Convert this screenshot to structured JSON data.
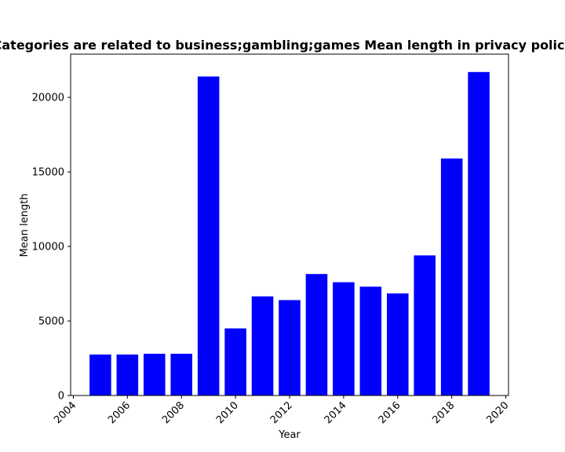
{
  "chart_data": {
    "type": "bar",
    "title": "Categories are related to business;gambling;games Mean length in privacy policies",
    "xlabel": "Year",
    "ylabel": "Mean length",
    "x": [
      2005,
      2006,
      2007,
      2008,
      2009,
      2010,
      2011,
      2012,
      2013,
      2014,
      2015,
      2016,
      2017,
      2018,
      2019
    ],
    "values": [
      2750,
      2750,
      2800,
      2800,
      21400,
      4500,
      6650,
      6400,
      8150,
      7600,
      7300,
      6850,
      9400,
      15900,
      21700
    ],
    "xlim": [
      2003.9,
      2020.1
    ],
    "ylim": [
      0,
      22900
    ],
    "xticks": [
      "2004",
      "2006",
      "2008",
      "2010",
      "2012",
      "2014",
      "2016",
      "2018",
      "2020"
    ],
    "yticks": [
      "0",
      "5000",
      "10000",
      "15000",
      "20000"
    ],
    "bar_color": "#0000ff",
    "grid": false
  }
}
